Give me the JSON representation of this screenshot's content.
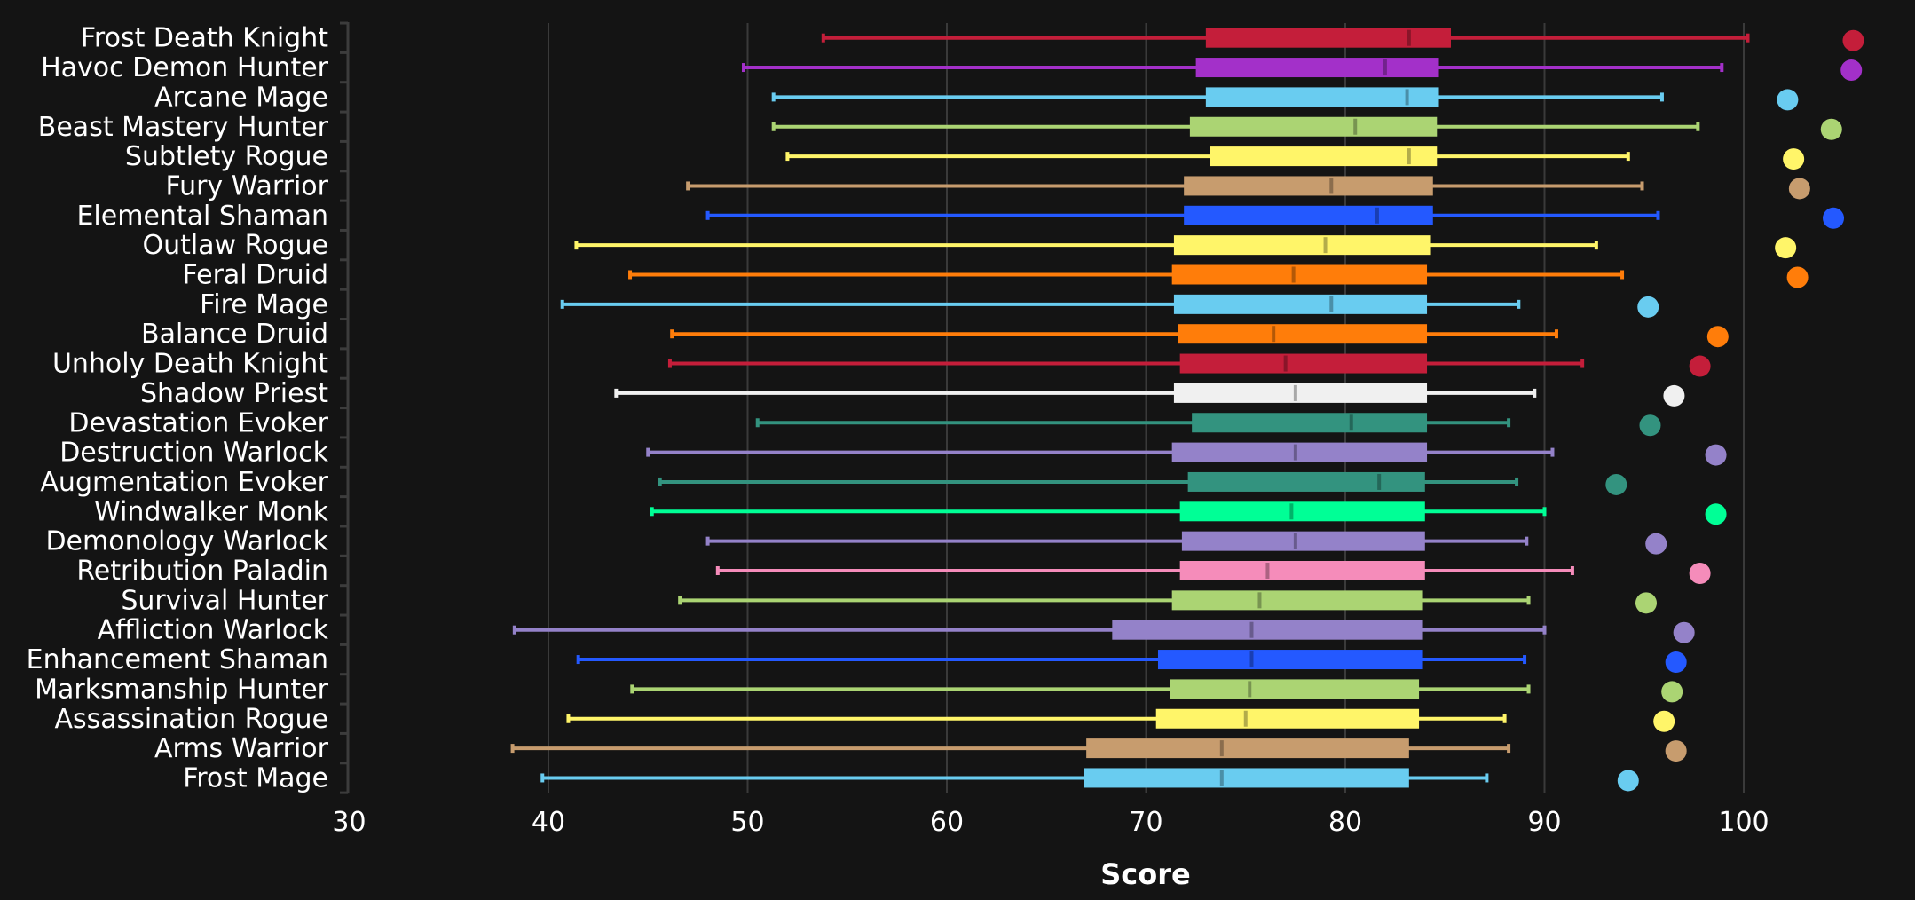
{
  "chart_data": {
    "type": "boxplot",
    "title": "",
    "xlabel": "Score",
    "ylabel": "",
    "xlim": [
      30,
      103
    ],
    "xticks": [
      30,
      40,
      50,
      60,
      70,
      80,
      90,
      100
    ],
    "grid": "vertical",
    "legend": "none",
    "series_fields": [
      "whisker_low",
      "q1",
      "median",
      "q3",
      "whisker_high",
      "max_point"
    ],
    "categories": [
      {
        "name": "Frost Death Knight",
        "color": "#C41E3A",
        "whisker_low": 53.8,
        "q1": 73.0,
        "median": 83.2,
        "q3": 85.3,
        "whisker_high": 100.2,
        "max_point": 105.5
      },
      {
        "name": "Havoc Demon Hunter",
        "color": "#A330C9",
        "whisker_low": 49.8,
        "q1": 72.5,
        "median": 82.0,
        "q3": 84.7,
        "whisker_high": 98.9,
        "max_point": 105.4
      },
      {
        "name": "Arcane Mage",
        "color": "#69CCF0",
        "whisker_low": 51.3,
        "q1": 73.0,
        "median": 83.1,
        "q3": 84.7,
        "whisker_high": 95.9,
        "max_point": 102.2
      },
      {
        "name": "Beast Mastery Hunter",
        "color": "#ABD473",
        "whisker_low": 51.3,
        "q1": 72.2,
        "median": 80.5,
        "q3": 84.6,
        "whisker_high": 97.7,
        "max_point": 104.4
      },
      {
        "name": "Subtlety Rogue",
        "color": "#FFF569",
        "whisker_low": 52.0,
        "q1": 73.2,
        "median": 83.2,
        "q3": 84.6,
        "whisker_high": 94.2,
        "max_point": 102.5
      },
      {
        "name": "Fury Warrior",
        "color": "#C79C6E",
        "whisker_low": 47.0,
        "q1": 71.9,
        "median": 79.3,
        "q3": 84.4,
        "whisker_high": 94.9,
        "max_point": 102.8
      },
      {
        "name": "Elemental Shaman",
        "color": "#2459FF",
        "whisker_low": 48.0,
        "q1": 71.9,
        "median": 81.6,
        "q3": 84.4,
        "whisker_high": 95.7,
        "max_point": 104.5
      },
      {
        "name": "Outlaw Rogue",
        "color": "#FFF569",
        "whisker_low": 41.4,
        "q1": 71.4,
        "median": 79.0,
        "q3": 84.3,
        "whisker_high": 92.6,
        "max_point": 102.1
      },
      {
        "name": "Feral Druid",
        "color": "#FF7D0A",
        "whisker_low": 44.1,
        "q1": 71.3,
        "median": 77.4,
        "q3": 84.1,
        "whisker_high": 93.9,
        "max_point": 102.7
      },
      {
        "name": "Fire Mage",
        "color": "#69CCF0",
        "whisker_low": 40.7,
        "q1": 71.4,
        "median": 79.3,
        "q3": 84.1,
        "whisker_high": 88.7,
        "max_point": 95.2
      },
      {
        "name": "Balance Druid",
        "color": "#FF7D0A",
        "whisker_low": 46.2,
        "q1": 71.6,
        "median": 76.4,
        "q3": 84.1,
        "whisker_high": 90.6,
        "max_point": 98.7
      },
      {
        "name": "Unholy Death Knight",
        "color": "#C41E3A",
        "whisker_low": 46.1,
        "q1": 71.7,
        "median": 77.0,
        "q3": 84.1,
        "whisker_high": 91.9,
        "max_point": 97.8
      },
      {
        "name": "Shadow Priest",
        "color": "#F0F0F0",
        "whisker_low": 43.4,
        "q1": 71.4,
        "median": 77.5,
        "q3": 84.1,
        "whisker_high": 89.5,
        "max_point": 96.5
      },
      {
        "name": "Devastation Evoker",
        "color": "#33937F",
        "whisker_low": 50.5,
        "q1": 72.3,
        "median": 80.3,
        "q3": 84.1,
        "whisker_high": 88.2,
        "max_point": 95.3
      },
      {
        "name": "Destruction Warlock",
        "color": "#9482C9",
        "whisker_low": 45.0,
        "q1": 71.3,
        "median": 77.5,
        "q3": 84.1,
        "whisker_high": 90.4,
        "max_point": 98.6
      },
      {
        "name": "Augmentation Evoker",
        "color": "#33937F",
        "whisker_low": 45.6,
        "q1": 72.1,
        "median": 81.7,
        "q3": 84.0,
        "whisker_high": 88.6,
        "max_point": 93.6
      },
      {
        "name": "Windwalker Monk",
        "color": "#00FF96",
        "whisker_low": 45.2,
        "q1": 71.7,
        "median": 77.3,
        "q3": 84.0,
        "whisker_high": 90.0,
        "max_point": 98.6
      },
      {
        "name": "Demonology Warlock",
        "color": "#9482C9",
        "whisker_low": 48.0,
        "q1": 71.8,
        "median": 77.5,
        "q3": 84.0,
        "whisker_high": 89.1,
        "max_point": 95.6
      },
      {
        "name": "Retribution Paladin",
        "color": "#F58CBA",
        "whisker_low": 48.5,
        "q1": 71.7,
        "median": 76.1,
        "q3": 84.0,
        "whisker_high": 91.4,
        "max_point": 97.8
      },
      {
        "name": "Survival Hunter",
        "color": "#ABD473",
        "whisker_low": 46.6,
        "q1": 71.3,
        "median": 75.7,
        "q3": 83.9,
        "whisker_high": 89.2,
        "max_point": 95.1
      },
      {
        "name": "Affliction Warlock",
        "color": "#9482C9",
        "whisker_low": 38.3,
        "q1": 68.3,
        "median": 75.3,
        "q3": 83.9,
        "whisker_high": 90.0,
        "max_point": 97.0
      },
      {
        "name": "Enhancement Shaman",
        "color": "#2459FF",
        "whisker_low": 41.5,
        "q1": 70.6,
        "median": 75.3,
        "q3": 83.9,
        "whisker_high": 89.0,
        "max_point": 96.6
      },
      {
        "name": "Marksmanship Hunter",
        "color": "#ABD473",
        "whisker_low": 44.2,
        "q1": 71.2,
        "median": 75.2,
        "q3": 83.7,
        "whisker_high": 89.2,
        "max_point": 96.4
      },
      {
        "name": "Assassination Rogue",
        "color": "#FFF569",
        "whisker_low": 41.0,
        "q1": 70.5,
        "median": 75.0,
        "q3": 83.7,
        "whisker_high": 88.0,
        "max_point": 96.0
      },
      {
        "name": "Arms Warrior",
        "color": "#C79C6E",
        "whisker_low": 38.2,
        "q1": 67.0,
        "median": 73.8,
        "q3": 83.2,
        "whisker_high": 88.2,
        "max_point": 96.6
      },
      {
        "name": "Frost Mage",
        "color": "#69CCF0",
        "whisker_low": 39.7,
        "q1": 66.9,
        "median": 73.8,
        "q3": 83.2,
        "whisker_high": 87.1,
        "max_point": 94.2
      }
    ]
  },
  "colors": {
    "background": "#141414",
    "grid": "#3a3a3a",
    "axis": "#3c3c3c",
    "text": "#ffffff"
  }
}
